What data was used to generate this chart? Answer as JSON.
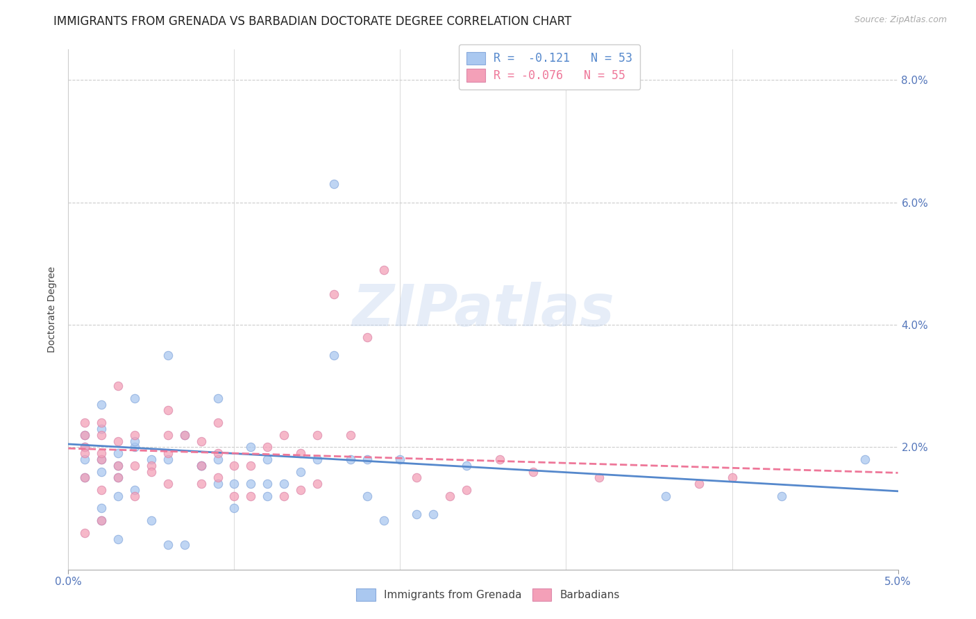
{
  "title": "IMMIGRANTS FROM GRENADA VS BARBADIAN DOCTORATE DEGREE CORRELATION CHART",
  "source": "Source: ZipAtlas.com",
  "xlabel_ticks_labeled": [
    "0.0%",
    "5.0%"
  ],
  "xlabel_vals_labeled": [
    0.0,
    0.05
  ],
  "xlabel_vals_minor": [
    0.01,
    0.02,
    0.03,
    0.04
  ],
  "ylabel": "Doctorate Degree",
  "ylabel_ticks": [
    "2.0%",
    "4.0%",
    "6.0%",
    "8.0%"
  ],
  "ylabel_vals": [
    0.02,
    0.04,
    0.06,
    0.08
  ],
  "xlim": [
    0.0,
    0.05
  ],
  "ylim": [
    0.0,
    0.085
  ],
  "watermark": "ZIPatlas",
  "color_grenada": "#aac8f0",
  "color_barbadian": "#f4a0b8",
  "color_line_grenada": "#5588cc",
  "color_line_barbadian": "#ee7799",
  "grenada_scatter_x": [
    0.001,
    0.001,
    0.001,
    0.001,
    0.002,
    0.002,
    0.002,
    0.002,
    0.002,
    0.002,
    0.003,
    0.003,
    0.003,
    0.003,
    0.003,
    0.004,
    0.004,
    0.004,
    0.004,
    0.005,
    0.005,
    0.006,
    0.006,
    0.006,
    0.007,
    0.007,
    0.008,
    0.008,
    0.009,
    0.009,
    0.009,
    0.01,
    0.01,
    0.011,
    0.011,
    0.012,
    0.012,
    0.012,
    0.013,
    0.014,
    0.015,
    0.016,
    0.016,
    0.017,
    0.018,
    0.018,
    0.019,
    0.02,
    0.021,
    0.022,
    0.024,
    0.036,
    0.043,
    0.048
  ],
  "grenada_scatter_y": [
    0.018,
    0.02,
    0.015,
    0.022,
    0.016,
    0.01,
    0.018,
    0.023,
    0.027,
    0.008,
    0.015,
    0.017,
    0.019,
    0.012,
    0.005,
    0.02,
    0.013,
    0.021,
    0.028,
    0.018,
    0.008,
    0.035,
    0.018,
    0.004,
    0.022,
    0.004,
    0.017,
    0.017,
    0.028,
    0.018,
    0.014,
    0.01,
    0.014,
    0.014,
    0.02,
    0.014,
    0.018,
    0.012,
    0.014,
    0.016,
    0.018,
    0.063,
    0.035,
    0.018,
    0.018,
    0.012,
    0.008,
    0.018,
    0.009,
    0.009,
    0.017,
    0.012,
    0.012,
    0.018
  ],
  "barbadian_scatter_x": [
    0.001,
    0.001,
    0.001,
    0.001,
    0.001,
    0.001,
    0.002,
    0.002,
    0.002,
    0.002,
    0.002,
    0.002,
    0.003,
    0.003,
    0.003,
    0.003,
    0.004,
    0.004,
    0.004,
    0.005,
    0.005,
    0.006,
    0.006,
    0.006,
    0.006,
    0.007,
    0.008,
    0.008,
    0.008,
    0.009,
    0.009,
    0.009,
    0.01,
    0.01,
    0.011,
    0.011,
    0.012,
    0.013,
    0.013,
    0.014,
    0.014,
    0.015,
    0.015,
    0.016,
    0.017,
    0.018,
    0.019,
    0.021,
    0.023,
    0.024,
    0.026,
    0.028,
    0.032,
    0.038,
    0.04
  ],
  "barbadian_scatter_y": [
    0.015,
    0.02,
    0.022,
    0.019,
    0.024,
    0.006,
    0.018,
    0.019,
    0.024,
    0.013,
    0.022,
    0.008,
    0.017,
    0.021,
    0.015,
    0.03,
    0.017,
    0.022,
    0.012,
    0.017,
    0.016,
    0.022,
    0.026,
    0.019,
    0.014,
    0.022,
    0.014,
    0.017,
    0.021,
    0.015,
    0.024,
    0.019,
    0.012,
    0.017,
    0.017,
    0.012,
    0.02,
    0.012,
    0.022,
    0.019,
    0.013,
    0.022,
    0.014,
    0.045,
    0.022,
    0.038,
    0.049,
    0.015,
    0.012,
    0.013,
    0.018,
    0.016,
    0.015,
    0.014,
    0.015
  ],
  "grenada_line_x": [
    0.0,
    0.05
  ],
  "grenada_line_y": [
    0.0205,
    0.0128
  ],
  "barbadian_line_x": [
    0.0,
    0.05
  ],
  "barbadian_line_y": [
    0.0198,
    0.0158
  ],
  "background_color": "#ffffff",
  "grid_color": "#cccccc",
  "title_fontsize": 12,
  "axis_label_fontsize": 10,
  "tick_fontsize": 11,
  "scatter_size": 80,
  "scatter_alpha": 0.75
}
